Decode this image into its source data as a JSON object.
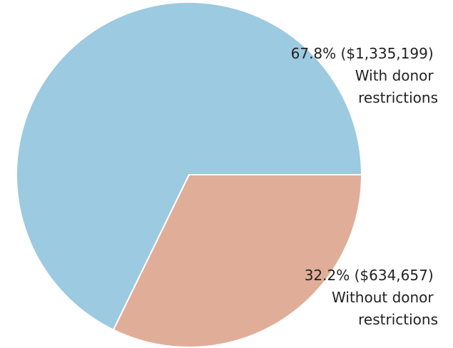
{
  "chart_data": {
    "type": "pie",
    "title": "",
    "slices": [
      {
        "label_line1": "67.8% ($1,335,199)",
        "label_line2": "With donor",
        "label_line3": "restrictions",
        "percent": 67.8,
        "value": 1335199,
        "color": "#9ccae0"
      },
      {
        "label_line1": "32.2% ($634,657)",
        "label_line2": "Without donor",
        "label_line3": "restrictions",
        "percent": 32.2,
        "value": 634657,
        "color": "#e0ae98"
      }
    ]
  }
}
